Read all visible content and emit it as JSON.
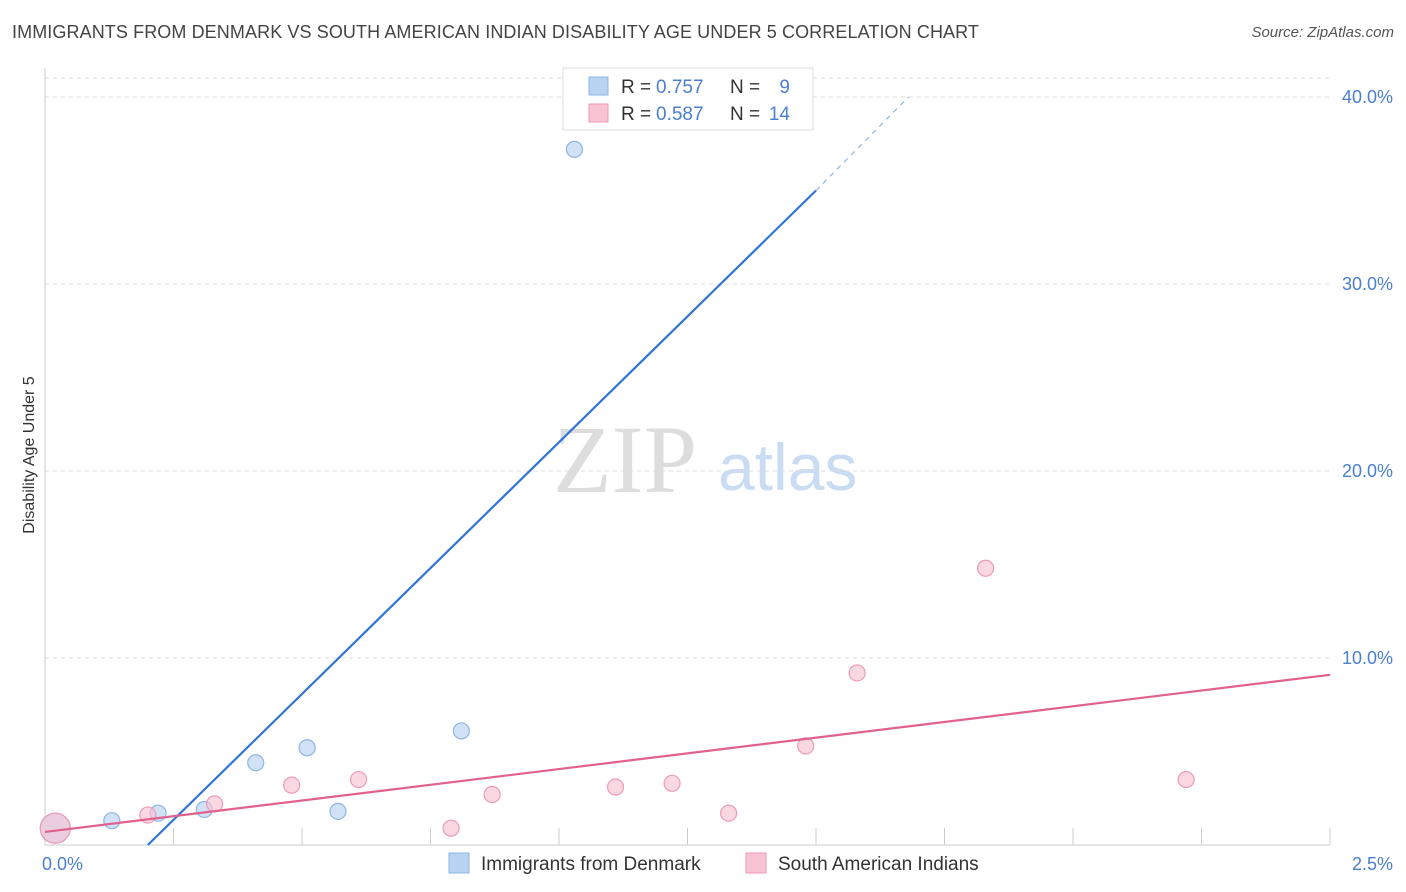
{
  "header": {
    "title": "IMMIGRANTS FROM DENMARK VS SOUTH AMERICAN INDIAN DISABILITY AGE UNDER 5 CORRELATION CHART",
    "source": "Source: ZipAtlas.com"
  },
  "watermark": {
    "zip": "ZIP",
    "atlas": "atlas"
  },
  "colors": {
    "blue_fill": "#b9d3f3",
    "blue_stroke": "#8db4e6",
    "blue_line": "#2f74d6",
    "pink_fill": "#f8c3d3",
    "pink_stroke": "#ee9ab4",
    "pink_line": "#e0608e",
    "tick_text": "#4a7fd0",
    "grid": "#dddddd"
  },
  "chart_data": {
    "type": "scatter",
    "title": "IMMIGRANTS FROM DENMARK VS SOUTH AMERICAN INDIAN DISABILITY AGE UNDER 5 CORRELATION CHART",
    "xlabel": "",
    "ylabel": "Disability Age Under 5",
    "xlim": [
      0,
      2.5
    ],
    "ylim": [
      0,
      40
    ],
    "x_tick_labels": [
      {
        "value": 0,
        "label": "0.0%"
      },
      {
        "value": 2.5,
        "label": "2.5%"
      }
    ],
    "y_tick_labels": [
      {
        "value": 10,
        "label": "10.0%"
      },
      {
        "value": 20,
        "label": "20.0%"
      },
      {
        "value": 30,
        "label": "30.0%"
      },
      {
        "value": 40,
        "label": "40.0%"
      }
    ],
    "legend_position": "top-center",
    "series": [
      {
        "name": "Immigrants from Denmark",
        "color_key": "blue",
        "R": "0.757",
        "N": "9",
        "points": [
          {
            "x": 0.02,
            "y": 0.9,
            "size": "large"
          },
          {
            "x": 0.13,
            "y": 1.3
          },
          {
            "x": 0.22,
            "y": 1.7
          },
          {
            "x": 0.31,
            "y": 1.9
          },
          {
            "x": 0.41,
            "y": 4.4
          },
          {
            "x": 0.51,
            "y": 5.2
          },
          {
            "x": 0.57,
            "y": 1.8
          },
          {
            "x": 0.81,
            "y": 6.1
          },
          {
            "x": 1.03,
            "y": 37.2
          }
        ],
        "trend": {
          "x1": 0.2,
          "y1": 0,
          "x2": 1.5,
          "y2": 35,
          "dashed_to": {
            "x": 1.68,
            "y": 40
          }
        }
      },
      {
        "name": "South American Indians",
        "color_key": "pink",
        "R": "0.587",
        "N": "14",
        "points": [
          {
            "x": 0.02,
            "y": 0.9,
            "size": "large"
          },
          {
            "x": 0.2,
            "y": 1.6
          },
          {
            "x": 0.33,
            "y": 2.2
          },
          {
            "x": 0.48,
            "y": 3.2
          },
          {
            "x": 0.61,
            "y": 3.5
          },
          {
            "x": 0.79,
            "y": 0.9
          },
          {
            "x": 0.87,
            "y": 2.7
          },
          {
            "x": 1.11,
            "y": 3.1
          },
          {
            "x": 1.22,
            "y": 3.3
          },
          {
            "x": 1.33,
            "y": 1.7
          },
          {
            "x": 1.48,
            "y": 5.3
          },
          {
            "x": 1.58,
            "y": 9.2
          },
          {
            "x": 1.83,
            "y": 14.8
          },
          {
            "x": 2.22,
            "y": 3.5
          }
        ],
        "trend": {
          "x1": 0,
          "y1": 0.7,
          "x2": 2.5,
          "y2": 9.1
        }
      }
    ]
  }
}
